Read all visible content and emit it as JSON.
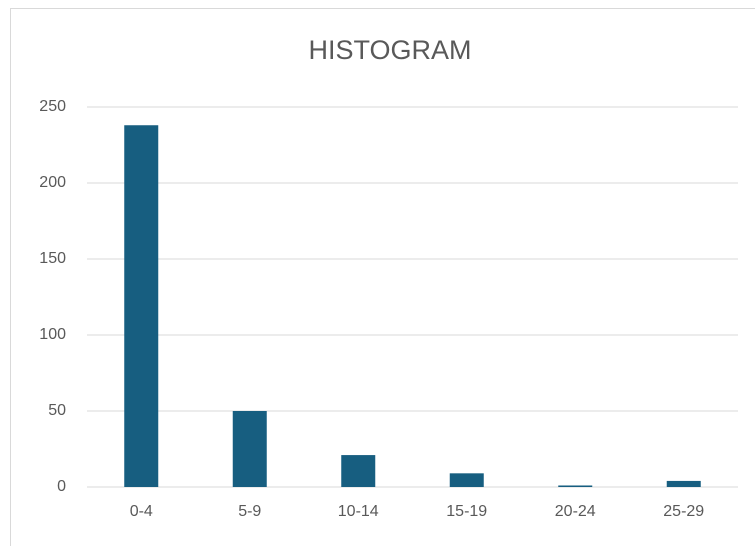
{
  "chart_data": {
    "type": "bar",
    "title": "HISTOGRAM",
    "categories": [
      "0-4",
      "5-9",
      "10-14",
      "15-19",
      "20-24",
      "25-29"
    ],
    "values": [
      238,
      50,
      21,
      9,
      1,
      4
    ],
    "color": "#175e80",
    "ylim": [
      0,
      250
    ],
    "yticks": [
      0,
      50,
      100,
      150,
      200,
      250
    ],
    "grid": true
  }
}
